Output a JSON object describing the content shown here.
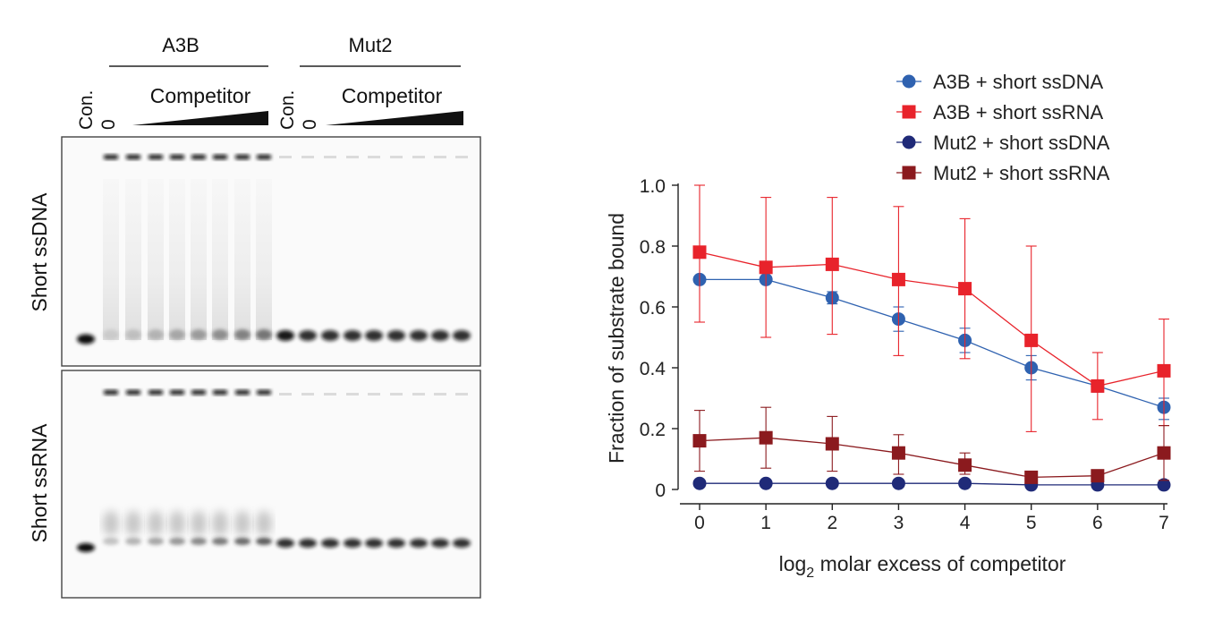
{
  "gel": {
    "group_labels": [
      "A3B",
      "Mut2"
    ],
    "lane_con_label": "Con.",
    "lane_zero_label": "0",
    "competitor_label": "Competitor",
    "panel_labels": [
      "Short ssDNA",
      "Short ssRNA"
    ]
  },
  "chart_data": {
    "type": "line",
    "xlabel_main": "log",
    "xlabel_sub": "2",
    "xlabel_rest": " molar excess of competitor",
    "ylabel": "Fraction of substrate bound",
    "x": [
      0,
      1,
      2,
      3,
      4,
      5,
      6,
      7
    ],
    "xlim": [
      0,
      7
    ],
    "ylim": [
      0,
      1.0
    ],
    "yticks": [
      0,
      0.2,
      0.4,
      0.6,
      0.8,
      1.0
    ],
    "ytick_labels": [
      "0",
      "0.2",
      "0.4",
      "0.6",
      "0.8",
      "1.0"
    ],
    "xtick_labels": [
      "0",
      "1",
      "2",
      "3",
      "4",
      "5",
      "6",
      "7"
    ],
    "legend_position": "top-right",
    "grid": false,
    "series": [
      {
        "name": "A3B + short ssDNA",
        "marker": "circle",
        "color": "#2f62b0",
        "values": [
          0.69,
          0.69,
          0.63,
          0.56,
          0.49,
          0.4,
          0.34,
          0.27
        ],
        "err_low": [
          0.69,
          0.69,
          0.61,
          0.52,
          0.45,
          0.36,
          0.32,
          0.23
        ],
        "err_high": [
          0.69,
          0.69,
          0.65,
          0.6,
          0.53,
          0.44,
          0.36,
          0.3
        ]
      },
      {
        "name": "A3B + short ssRNA",
        "marker": "square",
        "color": "#e8232b",
        "values": [
          0.78,
          0.73,
          0.74,
          0.69,
          0.66,
          0.49,
          0.34,
          0.39
        ],
        "err_low": [
          0.55,
          0.5,
          0.51,
          0.44,
          0.43,
          0.19,
          0.23,
          0.21
        ],
        "err_high": [
          1.0,
          0.96,
          0.96,
          0.93,
          0.89,
          0.8,
          0.45,
          0.56
        ]
      },
      {
        "name": "Mut2 + short ssDNA",
        "marker": "circle",
        "color": "#1f2a78",
        "values": [
          0.02,
          0.02,
          0.02,
          0.02,
          0.02,
          0.015,
          0.015,
          0.015
        ],
        "err_low": [
          0.01,
          0.01,
          0.01,
          0.01,
          0.01,
          0.01,
          0.01,
          0.01
        ],
        "err_high": [
          0.03,
          0.03,
          0.03,
          0.03,
          0.03,
          0.02,
          0.02,
          0.02
        ]
      },
      {
        "name": "Mut2 + short ssRNA",
        "marker": "square",
        "color": "#8b1a1e",
        "values": [
          0.16,
          0.17,
          0.15,
          0.12,
          0.08,
          0.04,
          0.045,
          0.12
        ],
        "err_low": [
          0.06,
          0.07,
          0.06,
          0.05,
          0.05,
          0.03,
          0.03,
          0.03
        ],
        "err_high": [
          0.26,
          0.27,
          0.24,
          0.18,
          0.12,
          0.05,
          0.06,
          0.21
        ]
      }
    ]
  },
  "colors": {
    "gel_band": "#111111",
    "axis": "#222222"
  }
}
